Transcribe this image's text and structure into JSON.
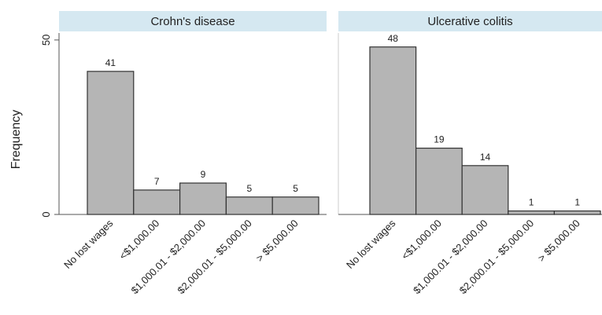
{
  "chart_data": [
    {
      "type": "bar",
      "title": "Crohn's disease",
      "y_label": "Frequency",
      "categories": [
        "No lost wages",
        "<$1,000.00",
        "$1,000.01 - $2,000.00",
        "$2,000.01 - $5,000.00",
        "> $5,000.00"
      ],
      "values": [
        41,
        7,
        9,
        5,
        5
      ],
      "color": "#b5b5b5",
      "ylim": [
        0,
        52
      ],
      "yticks": [
        0,
        50
      ]
    },
    {
      "type": "bar",
      "title": "Ulcerative colitis",
      "categories": [
        "No lost wages",
        "<$1,000.00",
        "$1,000.01 - $2,000.00",
        "$2,000.01 - $5,000.00",
        "> $5,000.00"
      ],
      "values": [
        48,
        19,
        14,
        1,
        1
      ],
      "color": "#b5b5b5",
      "ylim": [
        0,
        52
      ]
    }
  ]
}
